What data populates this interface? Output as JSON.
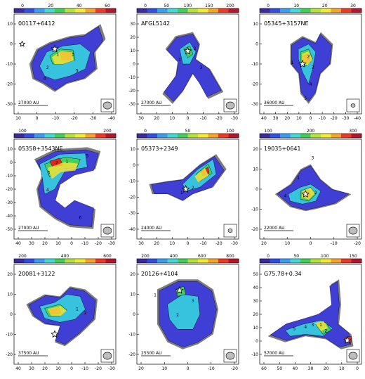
{
  "figure": {
    "panels": [
      {
        "name": "00117+6412",
        "colorbar_ticks": [
          "0",
          "20",
          "40",
          "60"
        ],
        "x_ticks": [
          "10",
          "0",
          "-10",
          "-20",
          "-30",
          "-40"
        ],
        "y_ticks": [
          "10",
          "0",
          "-10",
          "-20",
          "-30"
        ],
        "scalebar": "27000 AU",
        "beam": "large",
        "blob": "p0",
        "core_numbers": [
          "1",
          "2",
          "3",
          "4",
          "5"
        ]
      },
      {
        "name": "AFGL5142",
        "colorbar_ticks": [
          "0",
          "50",
          "100",
          "150",
          "200"
        ],
        "x_ticks": [
          "30",
          "20",
          "10",
          "0",
          "-10",
          "-20",
          "-30"
        ],
        "y_ticks": [
          "30",
          "20",
          "10",
          "0",
          "-10",
          "-20",
          "-30"
        ],
        "scalebar": "27000 AU",
        "beam": "large",
        "blob": "p1",
        "core_numbers": [
          "1",
          "2",
          "3"
        ]
      },
      {
        "name": "05345+3157NE",
        "colorbar_ticks": [
          "0",
          "10",
          "20",
          "30"
        ],
        "x_ticks": [
          "40",
          "30",
          "20",
          "10",
          "0",
          "-10",
          "-20",
          "-30",
          "-40"
        ],
        "y_ticks": [
          "10",
          "0",
          "-10",
          "-20",
          "-30"
        ],
        "scalebar": "36000 AU",
        "beam": "small",
        "blob": "p2",
        "core_numbers": [
          "1",
          "2",
          "3",
          "4",
          "5"
        ]
      },
      {
        "name": "05358+3543NE",
        "colorbar_ticks": [
          "100",
          "200"
        ],
        "x_ticks": [
          "40",
          "30",
          "20",
          "10",
          "0",
          "-10",
          "-20",
          "-30"
        ],
        "y_ticks": [
          "10",
          "0",
          "-10",
          "-20",
          "-30",
          "-40",
          "-50"
        ],
        "scalebar": "27000 AU",
        "beam": "large",
        "blob": "p3",
        "core_numbers": [
          "1",
          "2",
          "3",
          "4",
          "5",
          "6"
        ]
      },
      {
        "name": "05373+2349",
        "colorbar_ticks": [
          "0",
          "50",
          "100"
        ],
        "x_ticks": [
          "30",
          "20",
          "10",
          "0",
          "-10",
          "-20",
          "-30"
        ],
        "y_ticks": [
          "10",
          "0",
          "-10",
          "-20",
          "-30",
          "-40"
        ],
        "scalebar": "24000 AU",
        "beam": "small",
        "blob": "p4",
        "core_numbers": [
          "1",
          "2"
        ]
      },
      {
        "name": "19035+0641",
        "colorbar_ticks": [
          "100",
          "200",
          "300"
        ],
        "x_ticks": [
          "20",
          "10",
          "0",
          "-10",
          "-20"
        ],
        "y_ticks": [
          "20",
          "10",
          "0",
          "-10",
          "-20"
        ],
        "scalebar": "22000 AU",
        "beam": "large",
        "blob": "p5",
        "core_numbers": [
          "1",
          "2",
          "3",
          "4"
        ]
      },
      {
        "name": "20081+3122",
        "colorbar_ticks": [
          "200",
          "400",
          "600"
        ],
        "x_ticks": [
          "40",
          "30",
          "20",
          "10",
          "0",
          "-10",
          "-20",
          "-30"
        ],
        "y_ticks": [
          "20",
          "10",
          "0",
          "-10",
          "-20"
        ],
        "scalebar": "37500 AU",
        "beam": "large",
        "blob": "p6",
        "core_numbers": [
          "1",
          "2"
        ]
      },
      {
        "name": "20126+4104",
        "colorbar_ticks": [
          "200",
          "400",
          "600",
          "800"
        ],
        "x_ticks": [
          "20",
          "10",
          "0",
          "-10",
          "-20"
        ],
        "y_ticks": [
          "20",
          "10",
          "0",
          "-10",
          "-20"
        ],
        "scalebar": "25500 AU",
        "beam": "large",
        "blob": "p7",
        "core_numbers": [
          "1",
          "2",
          "3"
        ]
      },
      {
        "name": "G75.78+0.34",
        "colorbar_ticks": [
          "0",
          "50",
          "100",
          "150"
        ],
        "x_ticks": [
          "60",
          "50",
          "40",
          "30",
          "20",
          "10",
          "0"
        ],
        "y_ticks": [
          "50",
          "40",
          "30",
          "20",
          "10",
          "0",
          "-10"
        ],
        "scalebar": "57000 AU",
        "beam": "large",
        "blob": "p8",
        "core_numbers": [
          "1",
          "2",
          "3",
          "4",
          "5"
        ]
      }
    ]
  }
}
